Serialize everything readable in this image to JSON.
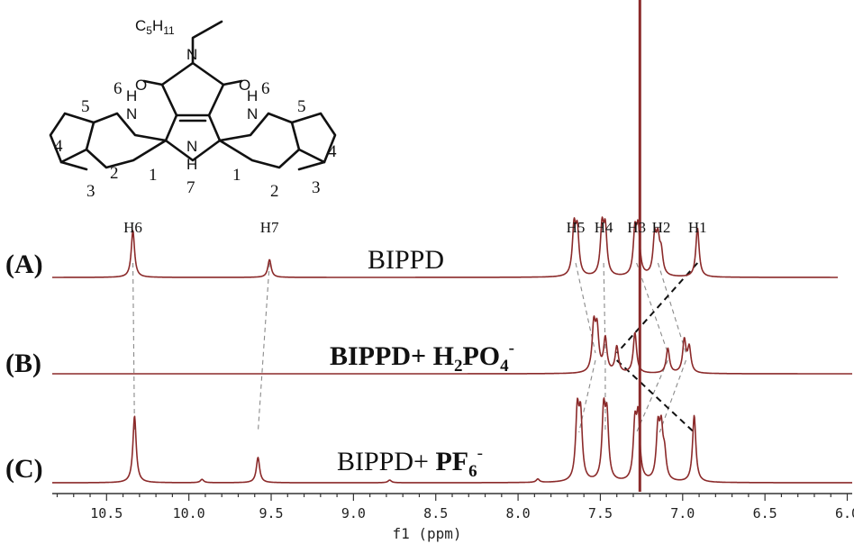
{
  "chart_data": {
    "type": "line",
    "title": "",
    "xlabel": "f1 (ppm)",
    "ylabel": "",
    "xlim": [
      10.83,
      5.97
    ],
    "x_reversed": true,
    "grid": false,
    "x_ticks": [
      10.5,
      10.0,
      9.5,
      9.0,
      8.5,
      8.0,
      7.5,
      7.0,
      6.5,
      6.0
    ],
    "x_tick_labels": [
      "10.5",
      "10.0",
      "9.5",
      "9.0",
      "8.5",
      "8.0",
      "7.5",
      "7.0",
      "6.5",
      "6.0"
    ],
    "series": [
      {
        "row_label": "(A)",
        "title": "BIPPD",
        "color": "#8b2a2a",
        "peaks": [
          {
            "ppm": 10.34,
            "height": 1.0
          },
          {
            "ppm": 9.51,
            "height": 0.38
          },
          {
            "ppm": 7.66,
            "height": 1.0
          },
          {
            "ppm": 7.64,
            "height": 0.92
          },
          {
            "ppm": 7.49,
            "height": 1.0
          },
          {
            "ppm": 7.47,
            "height": 0.95
          },
          {
            "ppm": 7.29,
            "height": 0.9
          },
          {
            "ppm": 7.27,
            "height": 0.95
          },
          {
            "ppm": 7.17,
            "height": 0.78
          },
          {
            "ppm": 7.15,
            "height": 0.7
          },
          {
            "ppm": 7.13,
            "height": 0.45
          },
          {
            "ppm": 6.91,
            "height": 1.05
          }
        ]
      },
      {
        "row_label": "(B)",
        "title": "BIPPD+ H",
        "title_sub": "2",
        "title_tail": "PO",
        "title_sub2": "4",
        "title_sup": "-",
        "title_color": "#e00000",
        "color": "#8b2a2a",
        "peaks": [
          {
            "ppm": 7.54,
            "height": 1.0
          },
          {
            "ppm": 7.52,
            "height": 0.9
          },
          {
            "ppm": 7.47,
            "height": 0.75
          },
          {
            "ppm": 7.4,
            "height": 0.58
          },
          {
            "ppm": 7.29,
            "height": 0.9
          },
          {
            "ppm": 7.09,
            "height": 0.55
          },
          {
            "ppm": 6.99,
            "height": 0.72
          },
          {
            "ppm": 6.96,
            "height": 0.55
          }
        ]
      },
      {
        "row_label": "(C)",
        "title": "BIPPD+ ",
        "title_bold": "PF",
        "title_sub": "6",
        "title_sup": "-",
        "color": "#8b2a2a",
        "peaks": [
          {
            "ppm": 10.33,
            "height": 1.0
          },
          {
            "ppm": 9.92,
            "height": 0.05
          },
          {
            "ppm": 9.58,
            "height": 0.38
          },
          {
            "ppm": 8.78,
            "height": 0.04
          },
          {
            "ppm": 7.88,
            "height": 0.05
          },
          {
            "ppm": 7.64,
            "height": 1.0
          },
          {
            "ppm": 7.62,
            "height": 0.92
          },
          {
            "ppm": 7.48,
            "height": 1.0
          },
          {
            "ppm": 7.46,
            "height": 0.9
          },
          {
            "ppm": 7.29,
            "height": 0.8
          },
          {
            "ppm": 7.27,
            "height": 0.9
          },
          {
            "ppm": 7.15,
            "height": 0.75
          },
          {
            "ppm": 7.13,
            "height": 0.7
          },
          {
            "ppm": 7.11,
            "height": 0.35
          },
          {
            "ppm": 6.93,
            "height": 1.0
          }
        ]
      }
    ],
    "solvent_peak": {
      "ppm": 7.26
    },
    "peak_labels": [
      {
        "text": "H6",
        "ppm": 10.34,
        "color": "#e07b2a"
      },
      {
        "text": "H7",
        "ppm": 9.51,
        "color": "#2a7bc0"
      },
      {
        "text": "H5",
        "ppm": 7.65,
        "color": "#111111"
      },
      {
        "text": "H4",
        "ppm": 7.48,
        "color": "#111111"
      },
      {
        "text": "H3",
        "ppm": 7.28,
        "color": "#111111"
      },
      {
        "text": "H2",
        "ppm": 7.13,
        "color": "#111111"
      },
      {
        "text": "H1",
        "ppm": 6.91,
        "color": "#111111"
      }
    ],
    "correlations": [
      {
        "from": 10.34,
        "to": 10.33,
        "rows": "A-C",
        "style": "gray"
      },
      {
        "from": 9.51,
        "to": 9.58,
        "rows": "A-C",
        "style": "gray"
      },
      {
        "from": 7.65,
        "to": 7.53,
        "rows": "A-B",
        "style": "gray"
      },
      {
        "from": 7.48,
        "to": 7.47,
        "rows": "A-B",
        "style": "gray"
      },
      {
        "from": 7.28,
        "to": 7.09,
        "rows": "A-B",
        "style": "gray"
      },
      {
        "from": 7.15,
        "to": 6.98,
        "rows": "A-B",
        "style": "gray"
      },
      {
        "from": 6.91,
        "to": 7.4,
        "rows": "A-B",
        "style": "dark"
      },
      {
        "from": 7.53,
        "to": 7.63,
        "rows": "B-C",
        "style": "gray"
      },
      {
        "from": 7.47,
        "to": 7.47,
        "rows": "B-C",
        "style": "gray"
      },
      {
        "from": 7.09,
        "to": 7.28,
        "rows": "B-C",
        "style": "gray"
      },
      {
        "from": 6.98,
        "to": 7.14,
        "rows": "B-C",
        "style": "gray"
      },
      {
        "from": 7.4,
        "to": 6.93,
        "rows": "B-C",
        "style": "dark"
      }
    ]
  },
  "molecule": {
    "alkyl_label": "C",
    "alkyl_sub1": "5",
    "alkyl_mid": "H",
    "alkyl_sub2": "11",
    "n_label": "N",
    "o_label": "O",
    "nh_label": "N",
    "h_label": "H",
    "numbers": [
      "6",
      "5",
      "4",
      "3",
      "2",
      "1",
      "7",
      "6",
      "5",
      "4",
      "3",
      "2",
      "1"
    ],
    "color_h6": "#e07b2a",
    "color_h7": "#2a7bc0"
  }
}
